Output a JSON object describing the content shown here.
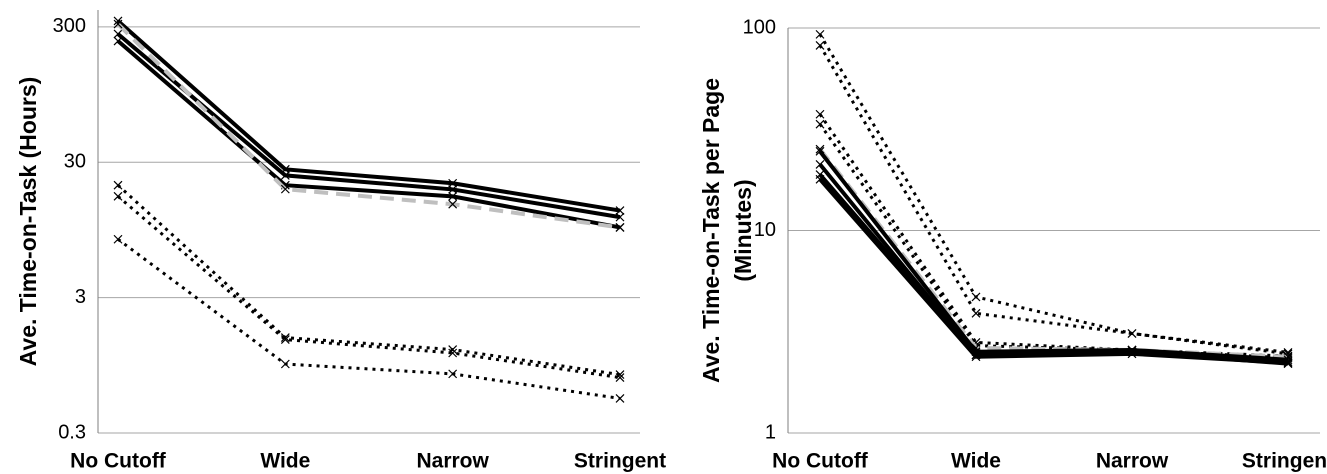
{
  "chart_data": [
    {
      "type": "line",
      "ylabel": [
        "Ave. Time-on-Task (Hours)"
      ],
      "log_scale": true,
      "grid": true,
      "categories": [
        "No Cutoff",
        "Wide",
        "Narrow",
        "Stringent"
      ],
      "ylim": [
        0.3,
        400
      ],
      "yticks": [
        0.3,
        3,
        30,
        300
      ],
      "series": [
        {
          "color": "#000000",
          "style": "solid",
          "values": [
            332,
            26.6,
            21,
            13.2
          ]
        },
        {
          "color": "#000000",
          "style": "solid",
          "values": [
            266,
            24,
            18.9,
            11.8
          ]
        },
        {
          "color": "#000000",
          "style": "solid",
          "values": [
            236,
            20.3,
            16.8,
            9.9
          ]
        },
        {
          "color": "#bfbfbf",
          "style": "dashed",
          "values": [
            315,
            19,
            14.7,
            9.9
          ]
        },
        {
          "color": "#000000",
          "style": "dotted",
          "values": [
            20.3,
            1.52,
            1.24,
            0.81
          ]
        },
        {
          "color": "#000000",
          "style": "dotted",
          "values": [
            16.8,
            1.47,
            1.17,
            0.77
          ]
        },
        {
          "color": "#000000",
          "style": "dotted",
          "values": [
            8.1,
            0.97,
            0.82,
            0.54
          ]
        }
      ]
    },
    {
      "type": "line",
      "ylabel": [
        "Ave. Time-on-Task per Page",
        "(Minutes)"
      ],
      "log_scale": true,
      "grid": true,
      "categories": [
        "No Cutoff",
        "Wide",
        "Narrow",
        "Stringent"
      ],
      "ylim": [
        1,
        100
      ],
      "yticks": [
        1,
        10,
        100
      ],
      "series": [
        {
          "color": "#000000",
          "style": "dotted",
          "values": [
            93,
            4.7,
            3.1,
            2.5
          ]
        },
        {
          "color": "#000000",
          "style": "dotted",
          "values": [
            82,
            3.9,
            3.1,
            2.46
          ]
        },
        {
          "color": "#000000",
          "style": "dotted",
          "values": [
            37.5,
            2.8,
            2.57,
            2.4
          ]
        },
        {
          "color": "#000000",
          "style": "dotted",
          "values": [
            33.5,
            2.7,
            2.57,
            2.35
          ]
        },
        {
          "color": "#bfbfbf",
          "style": "dashed",
          "values": [
            25.2,
            2.63,
            2.57,
            2.38
          ]
        },
        {
          "color": "#000000",
          "style": "solid",
          "values": [
            24.6,
            2.52,
            2.57,
            2.3
          ]
        },
        {
          "color": "#000000",
          "style": "solid",
          "values": [
            21.2,
            2.43,
            2.52,
            2.25
          ]
        },
        {
          "color": "#000000",
          "style": "solid",
          "values": [
            18.9,
            2.43,
            2.52,
            2.2
          ]
        },
        {
          "color": "#000000",
          "style": "solid",
          "values": [
            17.9,
            2.38,
            2.46,
            2.22
          ]
        }
      ]
    }
  ]
}
